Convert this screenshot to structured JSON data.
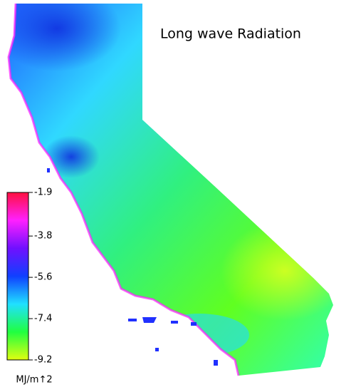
{
  "title": "Long wave Radiation",
  "colorbar": {
    "lim": [
      -9.2,
      -1.9
    ],
    "ticks": [
      -1.9,
      -3.8,
      -5.6,
      -7.4,
      -9.2
    ],
    "label": "MJ/m↑2",
    "colors": [
      "#ff1040",
      "#ff20ff",
      "#7010ff",
      "#1040ff",
      "#20e0ff",
      "#20ff40",
      "#e0ff10"
    ]
  }
}
